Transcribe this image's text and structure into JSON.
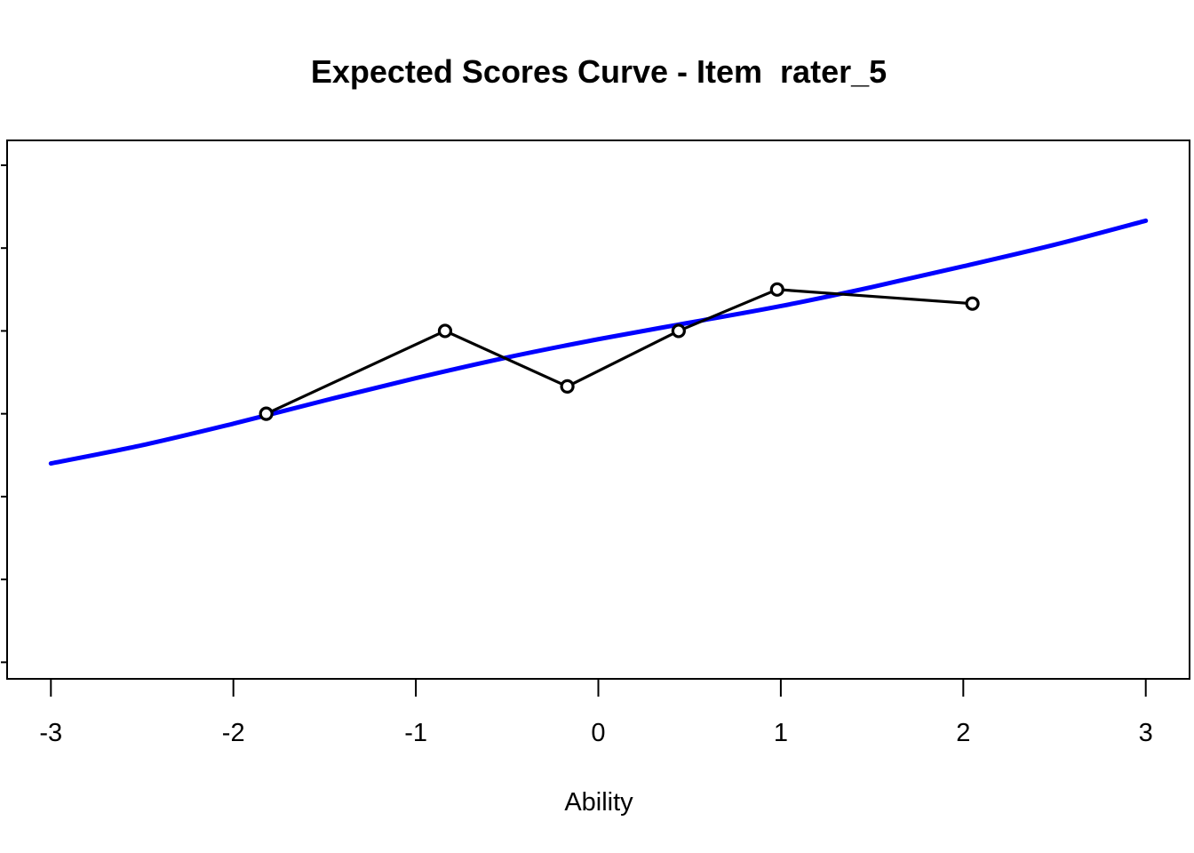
{
  "chart_data": {
    "type": "line",
    "title": "Expected Scores Curve - Item  rater_5",
    "xlabel": "Ability",
    "ylabel": "",
    "xlim": [
      -3.24,
      3.24
    ],
    "ylim": [
      0,
      6.5
    ],
    "x_ticks": [
      -3,
      -2,
      -1,
      0,
      1,
      2,
      3
    ],
    "y_ticks": [
      0.2,
      1.2,
      2.2,
      3.2,
      4.2,
      5.2,
      6.2
    ],
    "y_tick_labels_visible": false,
    "grid": false,
    "series": [
      {
        "color": "#0000ff",
        "style": "smooth-curve",
        "x": [
          -3.0,
          -2.5,
          -2.0,
          -1.5,
          -1.0,
          -0.5,
          0.0,
          0.5,
          1.0,
          1.5,
          2.0,
          2.5,
          3.0
        ],
        "y": [
          2.6,
          2.82,
          3.08,
          3.36,
          3.63,
          3.88,
          4.1,
          4.3,
          4.5,
          4.73,
          4.98,
          5.24,
          5.53
        ]
      },
      {
        "color": "#000000",
        "style": "line-with-circles",
        "x": [
          -1.82,
          -0.84,
          -0.17,
          0.44,
          0.98,
          2.05
        ],
        "y": [
          3.2,
          4.2,
          3.53,
          4.2,
          4.7,
          4.53
        ]
      }
    ]
  }
}
